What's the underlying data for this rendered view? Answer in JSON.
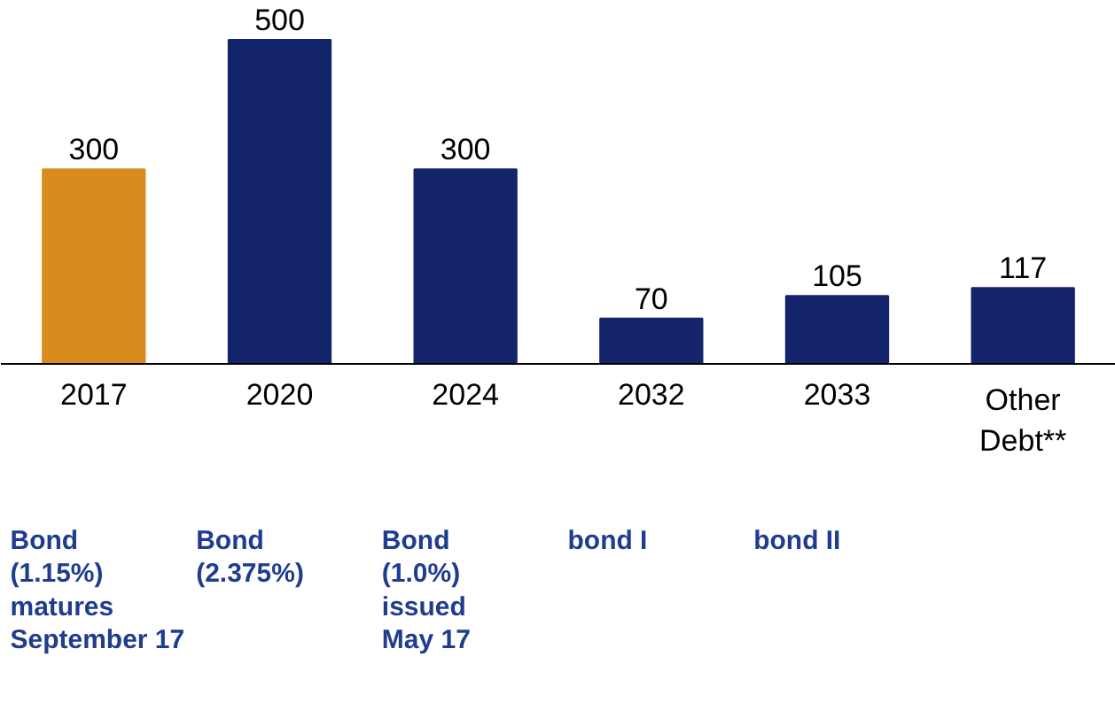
{
  "chart_data": {
    "type": "bar",
    "categories": [
      "2017",
      "2020",
      "2024",
      "2032",
      "2033",
      "Other Debt**"
    ],
    "values": [
      300,
      500,
      300,
      70,
      105,
      117
    ],
    "colors": [
      "#d98b1e",
      "#14246b",
      "#14246b",
      "#14246b",
      "#14246b",
      "#14246b"
    ],
    "data_labels": true,
    "grid": false,
    "tick_labels": "x",
    "annotations": [
      "Bond (1.15%) matures September 17",
      "Bond (2.375%)",
      "Bond (1.0%) issued May 17",
      "bond I",
      "bond II"
    ]
  }
}
